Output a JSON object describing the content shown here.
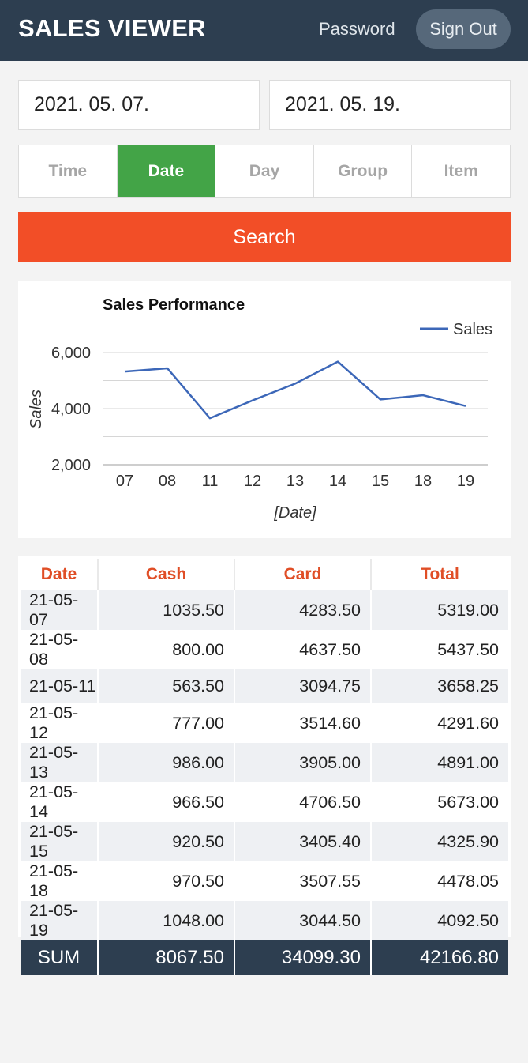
{
  "header": {
    "title": "SALES VIEWER",
    "password_label": "Password",
    "signout_label": "Sign Out"
  },
  "filters": {
    "start_date": "2021. 05. 07.",
    "end_date": "2021. 05. 19."
  },
  "tabs": [
    {
      "label": "Time",
      "active": false
    },
    {
      "label": "Date",
      "active": true
    },
    {
      "label": "Day",
      "active": false
    },
    {
      "label": "Group",
      "active": false
    },
    {
      "label": "Item",
      "active": false
    }
  ],
  "search_label": "Search",
  "colors": {
    "header_bg": "#2d3e50",
    "active_tab": "#43a447",
    "search_button": "#f24e27",
    "line": "#3c67b8",
    "table_header_text": "#e04e26"
  },
  "chart_data": {
    "type": "line",
    "title": "Sales Performance",
    "xlabel": "[Date]",
    "ylabel": "Sales",
    "legend": "top-right",
    "grid": true,
    "categories": [
      "07",
      "08",
      "11",
      "12",
      "13",
      "14",
      "15",
      "18",
      "19"
    ],
    "ylim": [
      2000,
      6000
    ],
    "yticks": [
      "2,000",
      "4,000",
      "6,000"
    ],
    "series": [
      {
        "name": "Sales",
        "values": [
          5319.0,
          5437.5,
          3658.25,
          4291.6,
          4891.0,
          5673.0,
          4325.9,
          4478.05,
          4092.5
        ]
      }
    ]
  },
  "table": {
    "columns": [
      "Date",
      "Cash",
      "Card",
      "Total"
    ],
    "rows": [
      [
        "21-05-07",
        "1035.50",
        "4283.50",
        "5319.00"
      ],
      [
        "21-05-08",
        "800.00",
        "4637.50",
        "5437.50"
      ],
      [
        "21-05-11",
        "563.50",
        "3094.75",
        "3658.25"
      ],
      [
        "21-05-12",
        "777.00",
        "3514.60",
        "4291.60"
      ],
      [
        "21-05-13",
        "986.00",
        "3905.00",
        "4891.00"
      ],
      [
        "21-05-14",
        "966.50",
        "4706.50",
        "5673.00"
      ],
      [
        "21-05-15",
        "920.50",
        "3405.40",
        "4325.90"
      ],
      [
        "21-05-18",
        "970.50",
        "3507.55",
        "4478.05"
      ],
      [
        "21-05-19",
        "1048.00",
        "3044.50",
        "4092.50"
      ]
    ],
    "sum": [
      "SUM",
      "8067.50",
      "34099.30",
      "42166.80"
    ]
  }
}
